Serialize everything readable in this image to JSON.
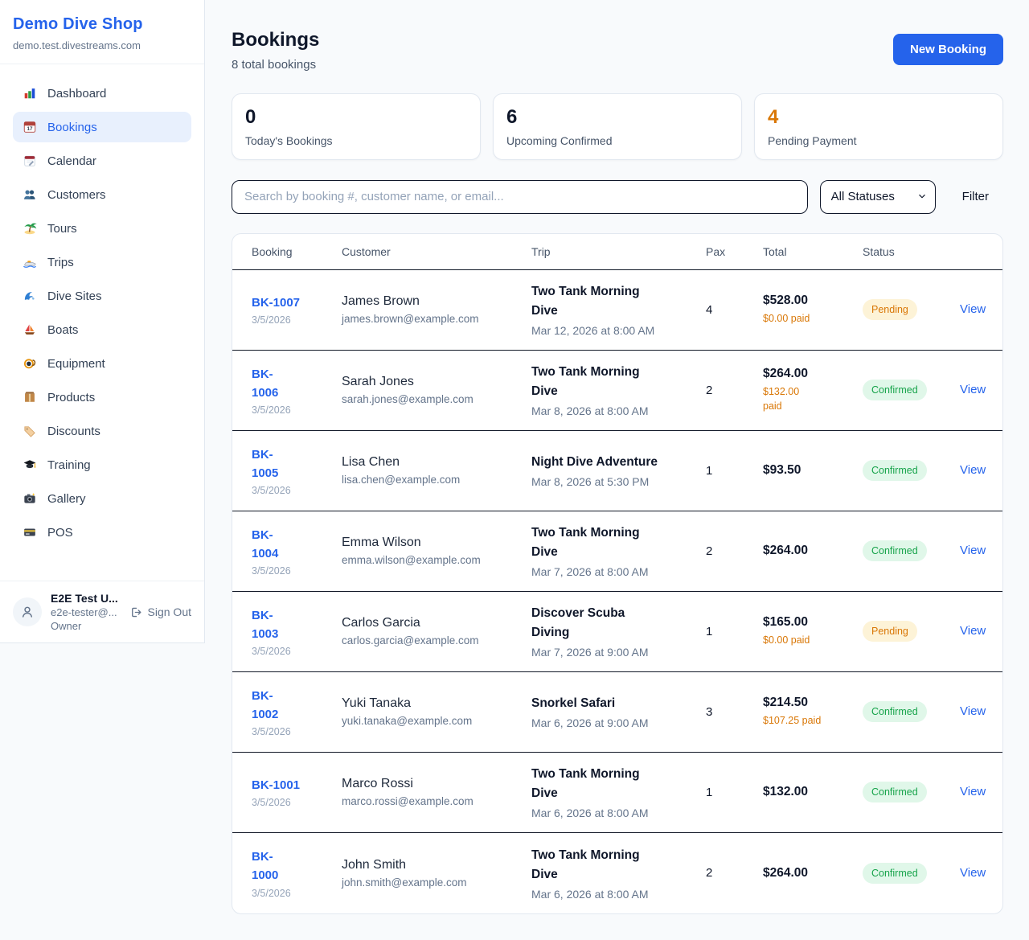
{
  "sidebar": {
    "brand": {
      "name": "Demo Dive Shop",
      "domain": "demo.test.divestreams.com"
    },
    "nav": [
      {
        "label": "Dashboard",
        "icon": "dashboard-icon",
        "active": false
      },
      {
        "label": "Bookings",
        "icon": "bookings-icon",
        "active": true
      },
      {
        "label": "Calendar",
        "icon": "calendar-icon",
        "active": false
      },
      {
        "label": "Customers",
        "icon": "customers-icon",
        "active": false
      },
      {
        "label": "Tours",
        "icon": "tours-icon",
        "active": false
      },
      {
        "label": "Trips",
        "icon": "trips-icon",
        "active": false
      },
      {
        "label": "Dive Sites",
        "icon": "dive-sites-icon",
        "active": false
      },
      {
        "label": "Boats",
        "icon": "boats-icon",
        "active": false
      },
      {
        "label": "Equipment",
        "icon": "equipment-icon",
        "active": false
      },
      {
        "label": "Products",
        "icon": "products-icon",
        "active": false
      },
      {
        "label": "Discounts",
        "icon": "discounts-icon",
        "active": false
      },
      {
        "label": "Training",
        "icon": "training-icon",
        "active": false
      },
      {
        "label": "Gallery",
        "icon": "gallery-icon",
        "active": false
      },
      {
        "label": "POS",
        "icon": "pos-icon",
        "active": false
      }
    ],
    "user": {
      "name": "E2E Test U...",
      "email": "e2e-tester@...",
      "role": "Owner",
      "sign_out_label": "Sign Out"
    }
  },
  "header": {
    "title": "Bookings",
    "subtitle": "8 total bookings",
    "new_booking_label": "New Booking"
  },
  "stats": [
    {
      "value": "0",
      "label": "Today's Bookings",
      "value_color": "#0f172a"
    },
    {
      "value": "6",
      "label": "Upcoming Confirmed",
      "value_color": "#0f172a"
    },
    {
      "value": "4",
      "label": "Pending Payment",
      "value_color": "#d97706"
    }
  ],
  "filters": {
    "search_placeholder": "Search by booking #, customer name, or email...",
    "status_selected": "All Statuses",
    "filter_label": "Filter"
  },
  "table": {
    "columns": [
      "Booking",
      "Customer",
      "Trip",
      "Pax",
      "Total",
      "Status"
    ],
    "view_label": "View",
    "rows": [
      {
        "id": "BK-1007",
        "date": "3/5/2026",
        "customer": "James Brown",
        "email": "james.brown@example.com",
        "trip": "Two Tank Morning\nDive",
        "trip_datetime": "Mar 12, 2026 at 8:00 AM",
        "pax": "4",
        "total": "$528.00",
        "paid": "$0.00 paid",
        "status": "Pending"
      },
      {
        "id": "BK-\n1006",
        "date": "3/5/2026",
        "customer": "Sarah Jones",
        "email": "sarah.jones@example.com",
        "trip": "Two Tank Morning\nDive",
        "trip_datetime": "Mar 8, 2026 at 8:00 AM",
        "pax": "2",
        "total": "$264.00",
        "paid": "$132.00\npaid",
        "status": "Confirmed"
      },
      {
        "id": "BK-\n1005",
        "date": "3/5/2026",
        "customer": "Lisa Chen",
        "email": "lisa.chen@example.com",
        "trip": "Night Dive Adventure",
        "trip_datetime": "Mar 8, 2026 at 5:30 PM",
        "pax": "1",
        "total": "$93.50",
        "paid": null,
        "status": "Confirmed"
      },
      {
        "id": "BK-\n1004",
        "date": "3/5/2026",
        "customer": "Emma Wilson",
        "email": "emma.wilson@example.com",
        "trip": "Two Tank Morning\nDive",
        "trip_datetime": "Mar 7, 2026 at 8:00 AM",
        "pax": "2",
        "total": "$264.00",
        "paid": null,
        "status": "Confirmed"
      },
      {
        "id": "BK-\n1003",
        "date": "3/5/2026",
        "customer": "Carlos Garcia",
        "email": "carlos.garcia@example.com",
        "trip": "Discover Scuba\nDiving",
        "trip_datetime": "Mar 7, 2026 at 9:00 AM",
        "pax": "1",
        "total": "$165.00",
        "paid": "$0.00 paid",
        "status": "Pending"
      },
      {
        "id": "BK-\n1002",
        "date": "3/5/2026",
        "customer": "Yuki Tanaka",
        "email": "yuki.tanaka@example.com",
        "trip": "Snorkel Safari",
        "trip_datetime": "Mar 6, 2026 at 9:00 AM",
        "pax": "3",
        "total": "$214.50",
        "paid": "$107.25 paid",
        "status": "Confirmed"
      },
      {
        "id": "BK-1001",
        "date": "3/5/2026",
        "customer": "Marco Rossi",
        "email": "marco.rossi@example.com",
        "trip": "Two Tank Morning\nDive",
        "trip_datetime": "Mar 6, 2026 at 8:00 AM",
        "pax": "1",
        "total": "$132.00",
        "paid": null,
        "status": "Confirmed"
      },
      {
        "id": "BK-\n1000",
        "date": "3/5/2026",
        "customer": "John Smith",
        "email": "john.smith@example.com",
        "trip": "Two Tank Morning\nDive",
        "trip_datetime": "Mar 6, 2026 at 8:00 AM",
        "pax": "2",
        "total": "$264.00",
        "paid": null,
        "status": "Confirmed"
      }
    ]
  },
  "colors": {
    "accent_blue": "#2563eb",
    "pending_text": "#d97706",
    "pending_bg": "#fdf3d7",
    "confirmed_text": "#16a34a",
    "confirmed_bg": "#e0f7e9",
    "active_nav_bg": "#e8f0fd"
  }
}
